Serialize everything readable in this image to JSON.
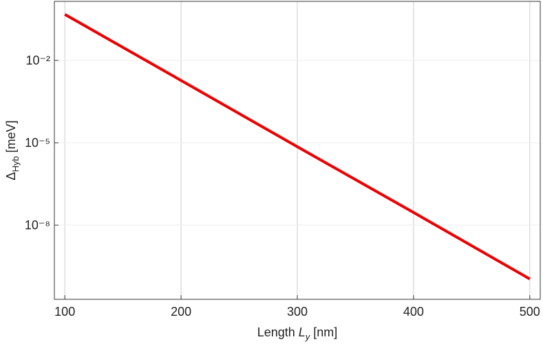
{
  "chart_data": {
    "type": "line",
    "log_y": true,
    "grid": true,
    "ylabel_parts": [
      "Δ",
      "Hyb",
      " [meV]"
    ],
    "xlabel_parts": [
      "Length ",
      "L",
      "y",
      " [nm]"
    ],
    "x": [
      100,
      200,
      300,
      400,
      500
    ],
    "series": [
      {
        "name": "Δ",
        "color": "#ee0000",
        "values": [
          0.473,
          0.00186,
          7.2e-06,
          2.9e-08,
          1.1e-10
        ]
      }
    ],
    "xlim": [
      91,
      509
    ],
    "xticks": [
      100,
      200,
      300,
      400,
      500
    ],
    "ylim": [
      2e-11,
      1.41
    ],
    "yticks": [
      {
        "value": 0.01,
        "label": "10⁻²"
      },
      {
        "value": 1e-05,
        "label": "10⁻⁵"
      },
      {
        "value": 1e-08,
        "label": "10⁻⁸"
      }
    ]
  }
}
